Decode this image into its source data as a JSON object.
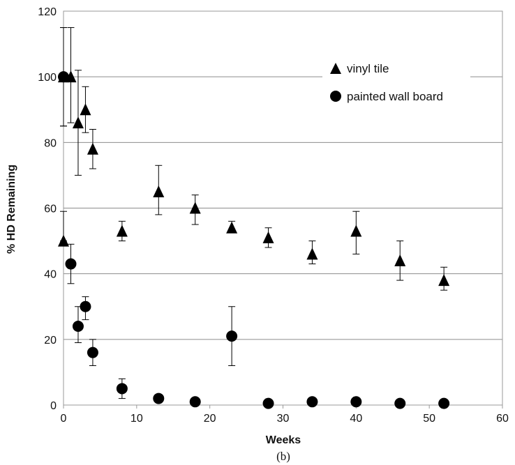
{
  "chart_data": {
    "type": "scatter",
    "xlabel": "Weeks",
    "ylabel": "% HD Remaining",
    "caption": "(b)",
    "xlim": [
      0,
      60
    ],
    "ylim": [
      0,
      120
    ],
    "x_ticks": [
      "0",
      "10",
      "20",
      "30",
      "40",
      "50",
      "60"
    ],
    "y_ticks": [
      "0",
      "20",
      "40",
      "60",
      "80",
      "100",
      "120"
    ],
    "grid": "horizontal",
    "legend_position": "top-right",
    "series": [
      {
        "name": "vinyl tile",
        "marker": "triangle",
        "points": [
          {
            "x": 0,
            "y": 50,
            "err_lo": 50,
            "err_hi": 59
          },
          {
            "x": 0,
            "y": 100,
            "err_lo": 85,
            "err_hi": 115
          },
          {
            "x": 1,
            "y": 100,
            "err_lo": 86,
            "err_hi": 115
          },
          {
            "x": 2,
            "y": 86,
            "err_lo": 70,
            "err_hi": 102
          },
          {
            "x": 3,
            "y": 90,
            "err_lo": 83,
            "err_hi": 97
          },
          {
            "x": 4,
            "y": 78,
            "err_lo": 72,
            "err_hi": 84
          },
          {
            "x": 8,
            "y": 53,
            "err_lo": 50,
            "err_hi": 56
          },
          {
            "x": 13,
            "y": 65,
            "err_lo": 58,
            "err_hi": 73
          },
          {
            "x": 18,
            "y": 60,
            "err_lo": 55,
            "err_hi": 64
          },
          {
            "x": 23,
            "y": 54,
            "err_lo": 53,
            "err_hi": 56
          },
          {
            "x": 28,
            "y": 51,
            "err_lo": 48,
            "err_hi": 54
          },
          {
            "x": 34,
            "y": 46,
            "err_lo": 43,
            "err_hi": 50
          },
          {
            "x": 40,
            "y": 53,
            "err_lo": 46,
            "err_hi": 59
          },
          {
            "x": 46,
            "y": 44,
            "err_lo": 38,
            "err_hi": 50
          },
          {
            "x": 52,
            "y": 38,
            "err_lo": 35,
            "err_hi": 42
          }
        ]
      },
      {
        "name": "painted wall board",
        "marker": "circle",
        "points": [
          {
            "x": 0,
            "y": 100,
            "err_lo": 85,
            "err_hi": 115
          },
          {
            "x": 1,
            "y": 43,
            "err_lo": 37,
            "err_hi": 49
          },
          {
            "x": 2,
            "y": 24,
            "err_lo": 19,
            "err_hi": 30
          },
          {
            "x": 3,
            "y": 30,
            "err_lo": 26,
            "err_hi": 33
          },
          {
            "x": 4,
            "y": 16,
            "err_lo": 12,
            "err_hi": 20
          },
          {
            "x": 8,
            "y": 5,
            "err_lo": 2,
            "err_hi": 8
          },
          {
            "x": 13,
            "y": 2,
            "err_lo": 1,
            "err_hi": 3
          },
          {
            "x": 18,
            "y": 1,
            "err_lo": 0,
            "err_hi": 2
          },
          {
            "x": 23,
            "y": 21,
            "err_lo": 12,
            "err_hi": 30
          },
          {
            "x": 28,
            "y": 0.5,
            "err_lo": 0,
            "err_hi": 1
          },
          {
            "x": 34,
            "y": 1,
            "err_lo": 0,
            "err_hi": 2
          },
          {
            "x": 40,
            "y": 1,
            "err_lo": 0,
            "err_hi": 2
          },
          {
            "x": 46,
            "y": 0.5,
            "err_lo": 0,
            "err_hi": 1
          },
          {
            "x": 52,
            "y": 0.5,
            "err_lo": 0,
            "err_hi": 1
          }
        ]
      }
    ]
  }
}
